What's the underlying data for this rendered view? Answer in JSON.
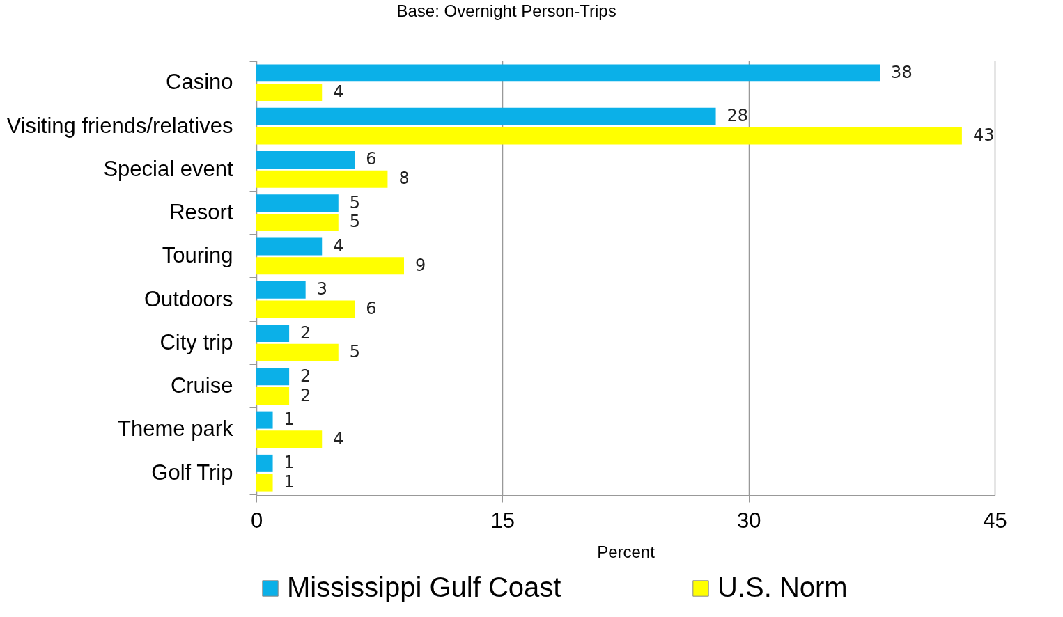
{
  "chart_data": {
    "type": "bar",
    "orientation": "horizontal",
    "title": "Base: Overnight Person-Trips",
    "xlabel": "Percent",
    "categories": [
      "Casino",
      "Visiting friends/relatives",
      "Special event",
      "Resort",
      "Touring",
      "Outdoors",
      "City trip",
      "Cruise",
      "Theme park",
      "Golf Trip"
    ],
    "series": [
      {
        "name": "Mississippi Gulf Coast",
        "color": "#0bb0e8",
        "values": [
          38,
          28,
          6,
          5,
          4,
          3,
          2,
          2,
          1,
          1
        ]
      },
      {
        "name": "U.S. Norm",
        "color": "#ffff00",
        "values": [
          4,
          43,
          8,
          5,
          9,
          6,
          5,
          2,
          4,
          1
        ]
      }
    ],
    "xlim": [
      0,
      45
    ],
    "xticks": [
      0,
      15,
      30,
      45
    ],
    "grid": "x",
    "legend": "bottom",
    "data_labels": true
  }
}
